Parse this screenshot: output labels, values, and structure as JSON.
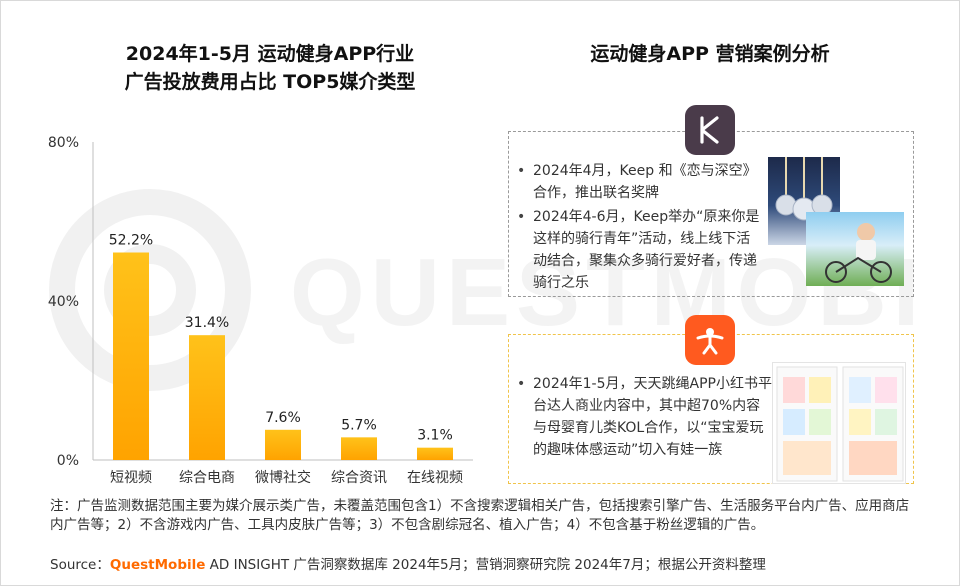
{
  "chart_title_line1": "2024年1-5月 运动健身APP行业",
  "chart_title_line2": "广告投放费用占比 TOP5媒介类型",
  "right_title": "运动健身APP 营销案例分析",
  "chart_data": {
    "type": "bar",
    "title": "2024年1-5月 运动健身APP行业 广告投放费用占比 TOP5媒介类型",
    "categories": [
      "短视频",
      "综合电商",
      "微博社交",
      "综合资讯",
      "在线视频"
    ],
    "values": [
      52.2,
      31.4,
      7.6,
      5.7,
      3.1
    ],
    "value_labels": [
      "52.2%",
      "31.4%",
      "7.6%",
      "5.7%",
      "3.1%"
    ],
    "yticks": [
      "0%",
      "40%",
      "80%"
    ],
    "ytick_values": [
      0,
      40,
      80
    ],
    "ylim": [
      0,
      80
    ],
    "grid": false,
    "bar_color_top": "#ffc21a",
    "bar_color_bottom": "#ffa300"
  },
  "keep_card": {
    "logo_letter": "K",
    "bullets": [
      "2024年4月，Keep 和《恋与深空》合作，推出联名奖牌",
      "2024年4-6月，Keep举办“原来你是这样的骑行青年”活动，线上线下活动结合，聚集众多骑行爱好者，传递骑行之乐"
    ]
  },
  "ttt_card": {
    "bullets": [
      "2024年1-5月，天天跳绳APP小红书平台达人商业内容中，其中超70%内容与母婴育儿类KOL合作，以“宝宝爱玩的趣味体感运动”切入有娃一族"
    ]
  },
  "note": "注：广告监测数据范围主要为媒介展示类广告，未覆盖范围包含1）不含搜索逻辑相关广告，包括搜索引擎广告、生活服务平台内广告、应用商店内广告等；2）不含游戏内广告、工具内皮肤广告等；3）不包含剧综冠名、植入广告；4）不包含基于粉丝逻辑的广告。",
  "source": {
    "prefix": "Source：",
    "brand": "QuestMobile",
    "rest": " AD INSIGHT 广告洞察数据库 2024年5月；营销洞察研究院 2024年7月；根据公开资料整理"
  },
  "watermark_text": "QUESTMOBILE",
  "colors": {
    "accent": "#ff6a00",
    "keep_logo": "#4a3b4a",
    "ttt_logo": "#ff5a1f",
    "ttt_border": "#f0c44a"
  }
}
